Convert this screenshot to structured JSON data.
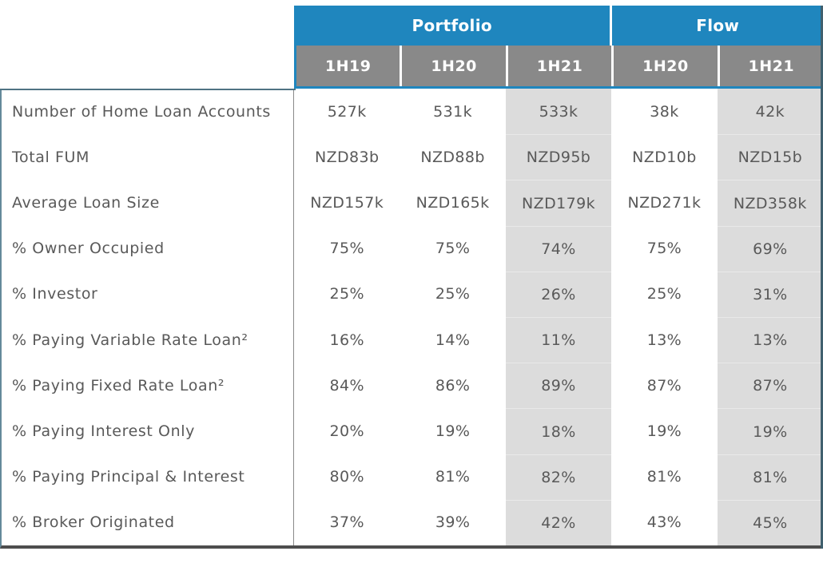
{
  "table": {
    "header": {
      "groups": [
        {
          "label": "Portfolio",
          "span": 3
        },
        {
          "label": "Flow",
          "span": 2
        }
      ],
      "periods": [
        "1H19",
        "1H20",
        "1H21",
        "1H20",
        "1H21"
      ],
      "shaded_period_indexes": [
        2,
        4
      ]
    },
    "rows": [
      {
        "label": "Number of Home Loan Accounts",
        "values": [
          "527k",
          "531k",
          "533k",
          "38k",
          "42k"
        ]
      },
      {
        "label": "Total FUM",
        "values": [
          "NZD83b",
          "NZD88b",
          "NZD95b",
          "NZD10b",
          "NZD15b"
        ]
      },
      {
        "label": "Average Loan Size",
        "values": [
          "NZD157k",
          "NZD165k",
          "NZD179k",
          "NZD271k",
          "NZD358k"
        ]
      },
      {
        "label": "% Owner Occupied",
        "values": [
          "75%",
          "75%",
          "74%",
          "75%",
          "69%"
        ]
      },
      {
        "label": "% Investor",
        "values": [
          "25%",
          "25%",
          "26%",
          "25%",
          "31%"
        ]
      },
      {
        "label": "% Paying Variable Rate Loan²",
        "values": [
          "16%",
          "14%",
          "11%",
          "13%",
          "13%"
        ]
      },
      {
        "label": "% Paying Fixed Rate Loan²",
        "values": [
          "84%",
          "86%",
          "89%",
          "87%",
          "87%"
        ]
      },
      {
        "label": "% Paying Interest Only",
        "values": [
          "20%",
          "19%",
          "18%",
          "19%",
          "19%"
        ]
      },
      {
        "label": "% Paying Principal & Interest",
        "values": [
          "80%",
          "81%",
          "82%",
          "81%",
          "81%"
        ]
      },
      {
        "label": "% Broker Originated",
        "values": [
          "37%",
          "39%",
          "42%",
          "43%",
          "45%"
        ]
      }
    ],
    "colors": {
      "group_header_blue": "#1F86BE",
      "period_header_gray": "#898989",
      "shaded_column": "#DCDCDC",
      "body_text": "#595959",
      "frame_slate": "#40606E",
      "bottom_rule": "#4D4D4D"
    }
  }
}
